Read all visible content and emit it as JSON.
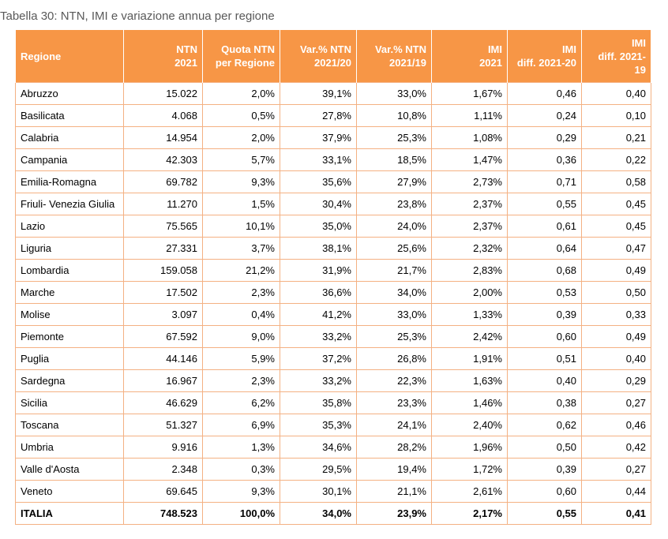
{
  "caption": "Tabella 30: NTN, IMI e variazione annua per regione",
  "headers": [
    [
      "Regione"
    ],
    [
      "NTN",
      "2021"
    ],
    [
      "Quota NTN",
      "per Regione"
    ],
    [
      "Var.% NTN",
      "2021/20"
    ],
    [
      "Var.% NTN",
      "2021/19"
    ],
    [
      "IMI",
      "2021"
    ],
    [
      "IMI",
      "diff. 2021-20"
    ],
    [
      "IMI",
      "diff. 2021-19"
    ]
  ],
  "rows": [
    [
      "Abruzzo",
      "15.022",
      "2,0%",
      "39,1%",
      "33,0%",
      "1,67%",
      "0,46",
      "0,40"
    ],
    [
      "Basilicata",
      "4.068",
      "0,5%",
      "27,8%",
      "10,8%",
      "1,11%",
      "0,24",
      "0,10"
    ],
    [
      "Calabria",
      "14.954",
      "2,0%",
      "37,9%",
      "25,3%",
      "1,08%",
      "0,29",
      "0,21"
    ],
    [
      "Campania",
      "42.303",
      "5,7%",
      "33,1%",
      "18,5%",
      "1,47%",
      "0,36",
      "0,22"
    ],
    [
      "Emilia-Romagna",
      "69.782",
      "9,3%",
      "35,6%",
      "27,9%",
      "2,73%",
      "0,71",
      "0,58"
    ],
    [
      "Friuli- Venezia Giulia",
      "11.270",
      "1,5%",
      "30,4%",
      "23,8%",
      "2,37%",
      "0,55",
      "0,45"
    ],
    [
      "Lazio",
      "75.565",
      "10,1%",
      "35,0%",
      "24,0%",
      "2,37%",
      "0,61",
      "0,45"
    ],
    [
      "Liguria",
      "27.331",
      "3,7%",
      "38,1%",
      "25,6%",
      "2,32%",
      "0,64",
      "0,47"
    ],
    [
      "Lombardia",
      "159.058",
      "21,2%",
      "31,9%",
      "21,7%",
      "2,83%",
      "0,68",
      "0,49"
    ],
    [
      "Marche",
      "17.502",
      "2,3%",
      "36,6%",
      "34,0%",
      "2,00%",
      "0,53",
      "0,50"
    ],
    [
      "Molise",
      "3.097",
      "0,4%",
      "41,2%",
      "33,0%",
      "1,33%",
      "0,39",
      "0,33"
    ],
    [
      "Piemonte",
      "67.592",
      "9,0%",
      "33,2%",
      "25,3%",
      "2,42%",
      "0,60",
      "0,49"
    ],
    [
      "Puglia",
      "44.146",
      "5,9%",
      "37,2%",
      "26,8%",
      "1,91%",
      "0,51",
      "0,40"
    ],
    [
      "Sardegna",
      "16.967",
      "2,3%",
      "33,2%",
      "22,3%",
      "1,63%",
      "0,40",
      "0,29"
    ],
    [
      "Sicilia",
      "46.629",
      "6,2%",
      "35,8%",
      "23,3%",
      "1,46%",
      "0,38",
      "0,27"
    ],
    [
      "Toscana",
      "51.327",
      "6,9%",
      "35,3%",
      "24,1%",
      "2,40%",
      "0,62",
      "0,46"
    ],
    [
      "Umbria",
      "9.916",
      "1,3%",
      "34,6%",
      "28,2%",
      "1,96%",
      "0,50",
      "0,42"
    ],
    [
      "Valle d'Aosta",
      "2.348",
      "0,3%",
      "29,5%",
      "19,4%",
      "1,72%",
      "0,39",
      "0,27"
    ],
    [
      "Veneto",
      "69.645",
      "9,3%",
      "30,1%",
      "21,1%",
      "2,61%",
      "0,60",
      "0,44"
    ]
  ],
  "total": [
    "ITALIA",
    "748.523",
    "100,0%",
    "34,0%",
    "23,9%",
    "2,17%",
    "0,55",
    "0,41"
  ],
  "colors": {
    "header_bg": "#F79646",
    "header_text": "#FFFFFF",
    "border": "#F4B183"
  }
}
